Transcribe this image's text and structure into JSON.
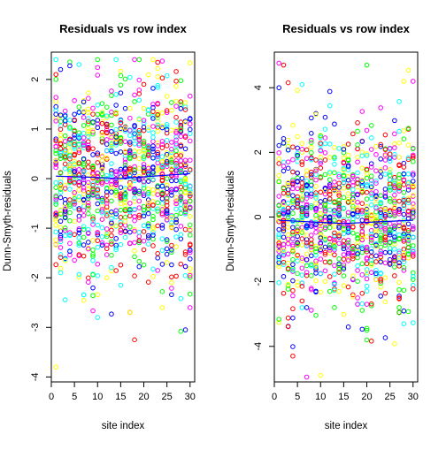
{
  "chart_data": [
    {
      "type": "scatter",
      "title": "Residuals vs row index",
      "xlabel": "site index",
      "ylabel": "Dunn-Smyth-residuals",
      "xlim": [
        0,
        31
      ],
      "ylim": [
        -4.1,
        2.55
      ],
      "x_ticks": [
        0,
        5,
        10,
        15,
        20,
        25,
        30
      ],
      "x_tick_labels": [
        "0",
        "5",
        "10",
        "15",
        "20",
        "25",
        "30"
      ],
      "y_ticks": [
        -4,
        -3,
        -2,
        -1,
        0,
        1,
        2
      ],
      "y_tick_labels": [
        "-4",
        "-3",
        "-2",
        "-1",
        "0",
        "1",
        "2"
      ],
      "marker": "open-circle",
      "point_colors": [
        "#FF0000",
        "#00FF00",
        "#0000FF",
        "#00FFFF",
        "#FF00FF",
        "#FFFF00"
      ],
      "x": [
        1,
        2,
        3,
        4,
        5,
        6,
        7,
        8,
        9,
        10,
        11,
        12,
        13,
        14,
        15,
        16,
        17,
        18,
        19,
        20,
        21,
        22,
        23,
        24,
        25,
        26,
        27,
        28,
        29,
        30
      ],
      "points_per_site": 40,
      "residual_spread": 0.95,
      "highlighted_points": [
        {
          "x": 1,
          "y": 2.1
        },
        {
          "x": 1,
          "y": 2.0
        },
        {
          "x": 2,
          "y": 2.2
        },
        {
          "x": 6,
          "y": 2.3
        },
        {
          "x": 24,
          "y": 2.37
        },
        {
          "x": 1,
          "y": -3.8
        },
        {
          "x": 18,
          "y": -3.25
        },
        {
          "x": 28,
          "y": -3.08
        },
        {
          "x": 29,
          "y": -3.05
        },
        {
          "x": 10,
          "y": -2.8
        },
        {
          "x": 30,
          "y": -2.6
        },
        {
          "x": 17,
          "y": -2.7
        }
      ],
      "smooth_line": {
        "color": "#0000FF",
        "x": [
          1,
          8,
          15,
          22,
          30
        ],
        "y": [
          0.05,
          0.03,
          0.0,
          0.05,
          0.1
        ]
      }
    },
    {
      "type": "scatter",
      "title": "Residuals vs row index",
      "xlabel": "site index",
      "ylabel": "Dunn-Smyth-residuals",
      "xlim": [
        0,
        31
      ],
      "ylim": [
        -5.1,
        5.1
      ],
      "x_ticks": [
        0,
        5,
        10,
        15,
        20,
        25,
        30
      ],
      "x_tick_labels": [
        "0",
        "5",
        "10",
        "15",
        "20",
        "25",
        "30"
      ],
      "y_ticks": [
        -4,
        -2,
        0,
        2,
        4
      ],
      "y_tick_labels": [
        "-4",
        "-2",
        "0",
        "2",
        "4"
      ],
      "marker": "open-circle",
      "point_colors": [
        "#FF0000",
        "#00FF00",
        "#0000FF",
        "#00FFFF",
        "#FF00FF",
        "#FFFF00"
      ],
      "x": [
        1,
        2,
        3,
        4,
        5,
        6,
        7,
        8,
        9,
        10,
        11,
        12,
        13,
        14,
        15,
        16,
        17,
        18,
        19,
        20,
        21,
        22,
        23,
        24,
        25,
        26,
        27,
        28,
        29,
        30
      ],
      "points_per_site": 40,
      "residual_spread": 1.35,
      "highlighted_points": [
        {
          "x": 2,
          "y": 4.7
        },
        {
          "x": 20,
          "y": 4.7
        },
        {
          "x": 1,
          "y": 4.0
        },
        {
          "x": 6,
          "y": 4.1
        },
        {
          "x": 30,
          "y": 4.2
        },
        {
          "x": 10,
          "y": -4.9
        },
        {
          "x": 4,
          "y": -4.3
        },
        {
          "x": 20,
          "y": -3.8
        },
        {
          "x": 16,
          "y": -3.4
        },
        {
          "x": 28,
          "y": -3.3
        }
      ],
      "smooth_line": {
        "color": "#0000FF",
        "x": [
          1,
          8,
          15,
          22,
          30
        ],
        "y": [
          -0.1,
          -0.15,
          -0.2,
          -0.15,
          -0.1
        ]
      }
    }
  ]
}
